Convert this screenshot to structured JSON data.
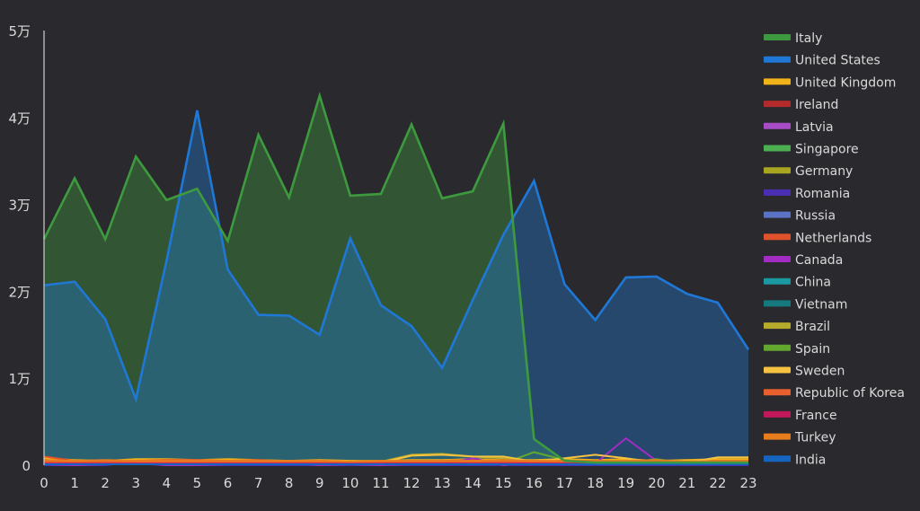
{
  "chart_data": {
    "type": "area",
    "title": "",
    "xlabel": "",
    "ylabel": "",
    "x": [
      0,
      1,
      2,
      3,
      4,
      5,
      6,
      7,
      8,
      9,
      10,
      11,
      12,
      13,
      14,
      15,
      16,
      17,
      18,
      19,
      20,
      21,
      22,
      23
    ],
    "ylim": [
      0,
      50000
    ],
    "y_ticks": [
      0,
      10000,
      20000,
      30000,
      40000,
      50000
    ],
    "y_tick_labels": [
      "0",
      "1万",
      "2万",
      "3万",
      "4万",
      "5万"
    ],
    "grid": false,
    "legend_position": "right",
    "series": [
      {
        "name": "Italy",
        "color": "#3e9a3e",
        "fill": true,
        "values": [
          26000,
          33000,
          26000,
          35500,
          30500,
          31800,
          25800,
          38000,
          30800,
          42500,
          31000,
          31200,
          39200,
          30700,
          31500,
          39300,
          3000,
          500,
          300,
          300,
          300,
          300,
          300,
          300
        ]
      },
      {
        "name": "United States",
        "color": "#1f78d6",
        "fill": true,
        "values": [
          20700,
          21100,
          16800,
          7600,
          23500,
          40800,
          22500,
          17300,
          17200,
          15000,
          26100,
          18400,
          16000,
          11200,
          19000,
          26500,
          32700,
          20800,
          16700,
          21600,
          21700,
          19700,
          18700,
          13300
        ]
      },
      {
        "name": "United Kingdom",
        "color": "#f2b21a",
        "fill": false,
        "values": [
          800,
          600,
          500,
          700,
          700,
          600,
          700,
          600,
          500,
          600,
          500,
          500,
          600,
          600,
          700,
          600,
          600,
          700,
          600,
          700,
          500,
          600,
          700,
          700
        ]
      },
      {
        "name": "Ireland",
        "color": "#b52a2a",
        "fill": false,
        "values": [
          300,
          300,
          300,
          300,
          300,
          300,
          300,
          300,
          300,
          300,
          300,
          300,
          300,
          300,
          300,
          300,
          300,
          300,
          300,
          300,
          300,
          300,
          300,
          300
        ]
      },
      {
        "name": "Latvia",
        "color": "#a64cc4",
        "fill": false,
        "values": [
          100,
          100,
          100,
          100,
          100,
          100,
          100,
          100,
          100,
          100,
          100,
          100,
          100,
          100,
          100,
          100,
          100,
          100,
          100,
          100,
          100,
          100,
          100,
          100
        ]
      },
      {
        "name": "Singapore",
        "color": "#4caf50",
        "fill": false,
        "values": [
          200,
          200,
          200,
          200,
          200,
          200,
          200,
          200,
          200,
          200,
          200,
          200,
          200,
          200,
          200,
          200,
          200,
          200,
          200,
          200,
          200,
          200,
          200,
          200
        ]
      },
      {
        "name": "Germany",
        "color": "#a8a520",
        "fill": false,
        "values": [
          200,
          200,
          200,
          200,
          200,
          200,
          200,
          200,
          200,
          200,
          200,
          200,
          200,
          200,
          200,
          200,
          200,
          200,
          200,
          200,
          200,
          200,
          200,
          200
        ]
      },
      {
        "name": "Romania",
        "color": "#4a2fb5",
        "fill": false,
        "values": [
          0,
          0,
          0,
          400,
          0,
          0,
          0,
          0,
          0,
          0,
          0,
          0,
          0,
          0,
          0,
          0,
          0,
          0,
          0,
          0,
          0,
          0,
          0,
          0
        ]
      },
      {
        "name": "Russia",
        "color": "#5b73c4",
        "fill": false,
        "values": [
          100,
          100,
          100,
          100,
          100,
          100,
          100,
          100,
          100,
          100,
          100,
          100,
          100,
          100,
          100,
          100,
          100,
          100,
          100,
          100,
          100,
          100,
          100,
          100
        ]
      },
      {
        "name": "Netherlands",
        "color": "#e0522b",
        "fill": false,
        "values": [
          1000,
          500,
          400,
          500,
          600,
          600,
          500,
          600,
          400,
          500,
          400,
          500,
          500,
          500,
          600,
          400,
          400,
          500,
          500,
          400,
          500,
          400,
          500,
          500
        ]
      },
      {
        "name": "Canada",
        "color": "#a32cc4",
        "fill": false,
        "values": [
          100,
          0,
          100,
          200,
          0,
          0,
          100,
          100,
          300,
          0,
          100,
          0,
          100,
          100,
          800,
          0,
          500,
          300,
          200,
          3100,
          500,
          100,
          100,
          200
        ]
      },
      {
        "name": "China",
        "color": "#1a9aa0",
        "fill": false,
        "values": [
          100,
          100,
          100,
          100,
          100,
          100,
          100,
          100,
          100,
          100,
          100,
          100,
          100,
          100,
          100,
          100,
          100,
          100,
          100,
          100,
          100,
          100,
          100,
          100
        ]
      },
      {
        "name": "Vietnam",
        "color": "#147a7f",
        "fill": false,
        "values": [
          100,
          100,
          100,
          100,
          100,
          100,
          100,
          100,
          100,
          100,
          100,
          100,
          100,
          100,
          100,
          100,
          100,
          100,
          100,
          100,
          100,
          100,
          100,
          100
        ]
      },
      {
        "name": "Brazil",
        "color": "#b5aa2a",
        "fill": false,
        "values": [
          300,
          300,
          300,
          300,
          300,
          300,
          300,
          300,
          300,
          300,
          300,
          400,
          1200,
          1300,
          1000,
          800,
          300,
          300,
          300,
          300,
          300,
          300,
          300,
          300
        ]
      },
      {
        "name": "Spain",
        "color": "#62a82e",
        "fill": false,
        "values": [
          200,
          200,
          200,
          200,
          200,
          200,
          200,
          200,
          200,
          200,
          200,
          200,
          200,
          200,
          200,
          200,
          1500,
          600,
          300,
          300,
          700,
          200,
          200,
          200
        ]
      },
      {
        "name": "Sweden",
        "color": "#f5c242",
        "fill": false,
        "values": [
          300,
          300,
          300,
          300,
          300,
          300,
          300,
          300,
          300,
          300,
          300,
          300,
          1100,
          1200,
          1000,
          1000,
          400,
          800,
          1200,
          800,
          300,
          300,
          900,
          900
        ]
      },
      {
        "name": "Republic of Korea",
        "color": "#e8602e",
        "fill": false,
        "values": [
          400,
          400,
          400,
          400,
          400,
          400,
          400,
          400,
          400,
          400,
          400,
          400,
          400,
          400,
          400,
          400,
          400,
          400,
          400,
          400,
          400,
          400,
          400,
          400
        ]
      },
      {
        "name": "France",
        "color": "#c2185b",
        "fill": false,
        "values": [
          200,
          200,
          200,
          200,
          200,
          200,
          200,
          200,
          200,
          200,
          200,
          200,
          200,
          200,
          200,
          200,
          200,
          200,
          200,
          200,
          200,
          200,
          200,
          200
        ]
      },
      {
        "name": "Turkey",
        "color": "#e87d1e",
        "fill": false,
        "values": [
          600,
          500,
          600,
          500,
          500,
          500,
          500,
          500,
          500,
          500,
          400,
          500,
          500,
          500,
          500,
          600,
          500,
          500,
          500,
          500,
          600,
          400,
          500,
          500
        ]
      },
      {
        "name": "India",
        "color": "#1565c0",
        "fill": false,
        "values": [
          100,
          100,
          100,
          100,
          100,
          100,
          100,
          100,
          100,
          100,
          100,
          100,
          100,
          100,
          100,
          100,
          100,
          100,
          100,
          100,
          100,
          100,
          100,
          100
        ]
      }
    ]
  },
  "colors": {
    "background": "#2a2a2e",
    "text": "#d9d9d9",
    "axis": "#cfcfcf"
  }
}
